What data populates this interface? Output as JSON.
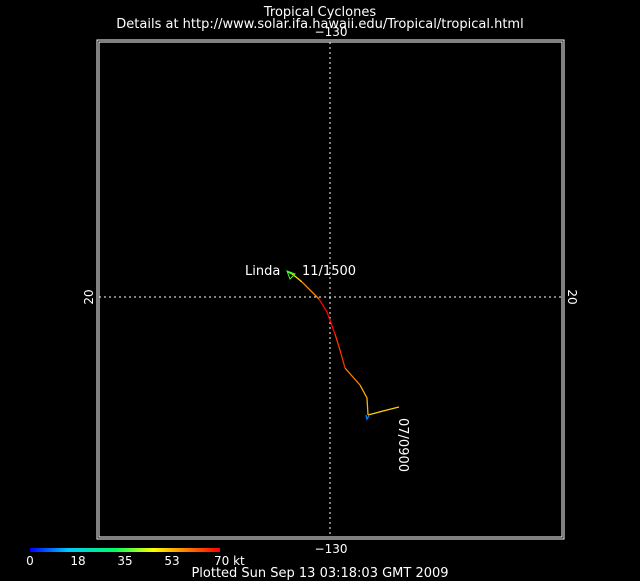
{
  "header": {
    "title": "Tropical Cyclones",
    "subtitle": "Details at http://www.solar.ifa.hawaii.edu/Tropical/tropical.html"
  },
  "map": {
    "longitude_label": "−130",
    "latitude_label": "20",
    "frame_color": "#ffffff",
    "grid_color": "#ffffff"
  },
  "storm": {
    "name": "Linda",
    "end_label": "11/1500",
    "start_label": "07/0900"
  },
  "legend": {
    "ticks": [
      "0",
      "18",
      "35",
      "53",
      "70 kt"
    ],
    "colors": [
      "#0000ff",
      "#00c8ff",
      "#00ff60",
      "#ffff00",
      "#ff8000",
      "#ff0000"
    ]
  },
  "footer": {
    "plotted": "Plotted Sun Sep 13 03:18:03 GMT 2009"
  }
}
